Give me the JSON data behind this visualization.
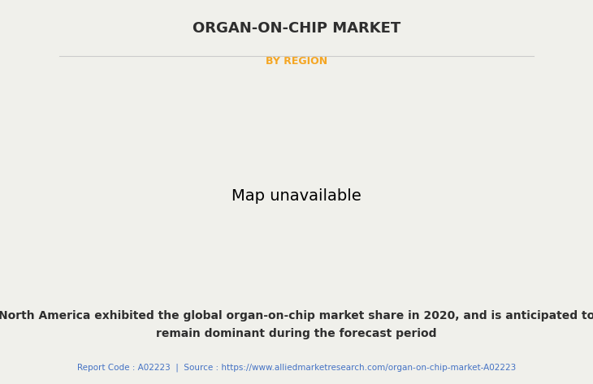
{
  "title": "ORGAN-ON-CHIP MARKET",
  "subtitle": "BY REGION",
  "subtitle_color": "#F5A623",
  "description": "North America exhibited the global organ-on-chip market share in 2020, and is anticipated to\nremain dominant during the forecast period",
  "footer": "Report Code : A02223  |  Source : https://www.alliedmarketresearch.com/organ-on-chip-market-A02223",
  "footer_color": "#4472C4",
  "bg_color": "#F0F0EB",
  "title_color": "#2E2E2E",
  "desc_color": "#2E2E2E",
  "color_white": "#EFEFEF",
  "color_green": "#7DBD7D",
  "color_yellow": "#DEDE9A",
  "border_color": "#8BB8D4",
  "shadow_color": "#999999",
  "divider_color": "#CCCCCC",
  "title_fontsize": 13,
  "subtitle_fontsize": 9,
  "desc_fontsize": 10,
  "footer_fontsize": 7.5
}
